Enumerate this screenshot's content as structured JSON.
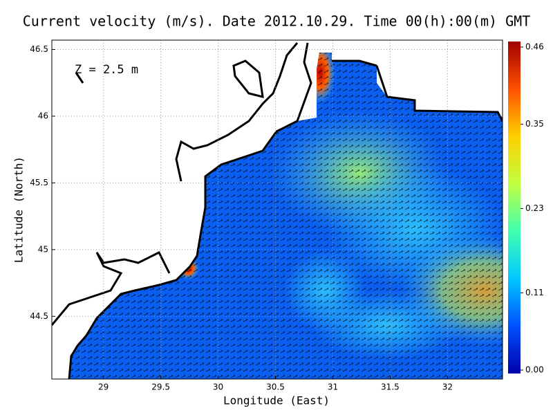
{
  "chart_data": {
    "type": "map",
    "title": "Current velocity (m/s). Date 2012.10.29. Time 00(h):00(m) GMT",
    "annotation": "Z = 2.5 m",
    "x_label": "Longitude (East)",
    "y_label": "Latitude (North)",
    "xlim": [
      28.55,
      32.48
    ],
    "ylim": [
      44.03,
      46.57
    ],
    "xticks": [
      29,
      29.5,
      30,
      30.5,
      31,
      31.5,
      32
    ],
    "yticks": [
      44.5,
      45,
      45.5,
      46,
      46.5
    ],
    "grid": true,
    "clim": [
      0,
      0.46
    ],
    "colorbar_ticks": [
      {
        "value": 0,
        "label": "0.00"
      },
      0.11,
      0.23,
      0.35,
      0.46
    ],
    "colormap": [
      "#0000aa",
      "#0050ff",
      "#00c8ff",
      "#40ffb0",
      "#c0ff40",
      "#ffd000",
      "#ff5000",
      "#a00000"
    ]
  }
}
